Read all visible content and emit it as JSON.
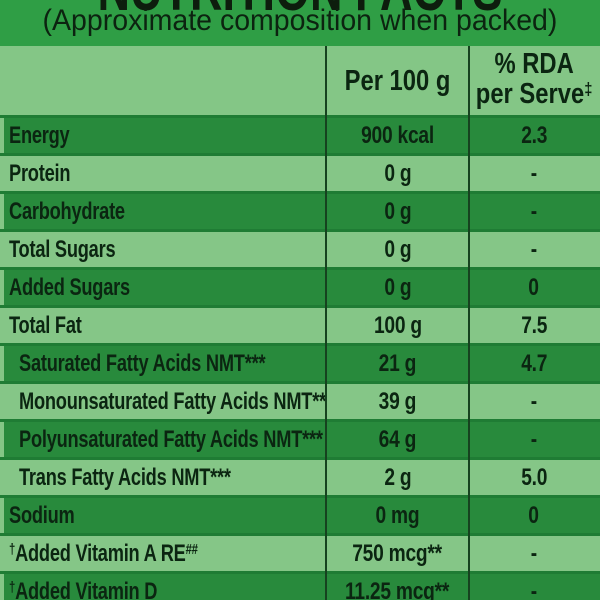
{
  "header": {
    "title": "NUTRITION FACTS",
    "subtitle": "(Approximate composition when packed)"
  },
  "table": {
    "columns": {
      "item": "",
      "per100": "Per 100 g",
      "rda_line1": "% RDA",
      "rda_line2": "per Serve",
      "rda_sup": "‡"
    },
    "rows": [
      {
        "label": "Energy",
        "per100": "900 kcal",
        "rda": "2.3"
      },
      {
        "label": "Protein",
        "per100": "0 g",
        "rda": "-"
      },
      {
        "label": "Carbohydrate",
        "per100": "0 g",
        "rda": "-"
      },
      {
        "label": "Total Sugars",
        "per100": "0 g",
        "rda": "-"
      },
      {
        "label": "Added Sugars",
        "per100": "0 g",
        "rda": "0"
      },
      {
        "label": "Total Fat",
        "per100": "100 g",
        "rda": "7.5"
      },
      {
        "label": "Saturated Fatty Acids NMT***",
        "per100": "21 g",
        "rda": "4.7"
      },
      {
        "label": "Monounsaturated Fatty Acids NMT***",
        "per100": "39 g",
        "rda": "-"
      },
      {
        "label": "Polyunsaturated Fatty Acids NMT***",
        "per100": "64 g",
        "rda": "-"
      },
      {
        "label": "Trans Fatty Acids NMT***",
        "per100": "2 g",
        "rda": "5.0"
      },
      {
        "label": "Sodium",
        "per100": "0 mg",
        "rda": "0"
      },
      {
        "label_pre_sup": "†",
        "label": "Added Vitamin A RE",
        "label_sup": "##",
        "per100": "750 mcg**",
        "rda": "-"
      },
      {
        "label_pre_sup": "†",
        "label": "Added Vitamin D",
        "per100": "11.25 mcg**",
        "rda": "-"
      }
    ]
  },
  "colors": {
    "title_band_green": "#2f9e45",
    "dark_row_green": "#288a3c",
    "light_row_green": "#85c687",
    "row_separator_green": "#1f7c34",
    "column_divider_green": "#16421f",
    "text_dark": "#0b2511"
  }
}
